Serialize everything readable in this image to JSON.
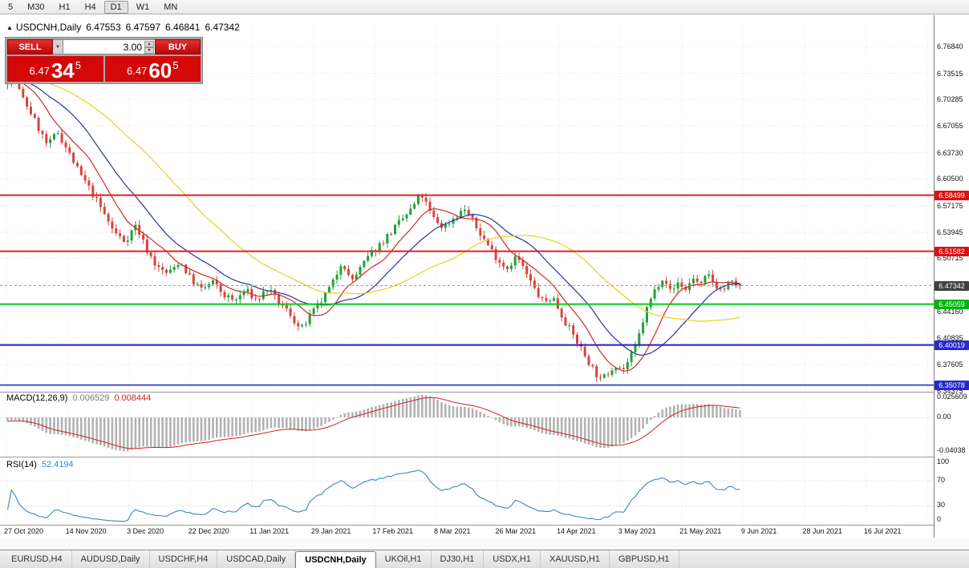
{
  "toolbar": {
    "timeframes": [
      {
        "label": "5",
        "active": false
      },
      {
        "label": "M30",
        "active": false
      },
      {
        "label": "H1",
        "active": false
      },
      {
        "label": "H4",
        "active": false
      },
      {
        "label": "D1",
        "active": true
      },
      {
        "label": "W1",
        "active": false
      },
      {
        "label": "MN",
        "active": false
      }
    ]
  },
  "chart": {
    "title_marker": "▲",
    "symbol_period": "USDCNH,Daily",
    "ohlc": {
      "open": "6.47553",
      "high": "6.47597",
      "low": "6.46841",
      "close": "6.47342"
    }
  },
  "trade_panel": {
    "sell_label": "SELL",
    "buy_label": "BUY",
    "volume": "3.00",
    "sell_quote": {
      "prefix": "6.47",
      "big": "34",
      "sup": "5"
    },
    "buy_quote": {
      "prefix": "6.47",
      "big": "60",
      "sup": "5"
    }
  },
  "indicators": {
    "macd": {
      "label": "MACD(12,26,9)",
      "value_main": "0.006529",
      "value_signal": "0.008444",
      "scale": [
        "0.025609",
        "0.00",
        "-0.04038"
      ]
    },
    "rsi": {
      "label": "RSI(14)",
      "value": "52.4194",
      "scale": [
        "100",
        "70",
        "30",
        "0"
      ]
    }
  },
  "price_scale": {
    "ticks": [
      {
        "label": "6.76840",
        "price": 6.7684
      },
      {
        "label": "6.73515",
        "price": 6.73515
      },
      {
        "label": "6.70285",
        "price": 6.70285
      },
      {
        "label": "6.67055",
        "price": 6.67055
      },
      {
        "label": "6.63730",
        "price": 6.6373
      },
      {
        "label": "6.60500",
        "price": 6.605
      },
      {
        "label": "6.57175",
        "price": 6.57175
      },
      {
        "label": "6.53945",
        "price": 6.53945
      },
      {
        "label": "6.50715",
        "price": 6.50715
      },
      {
        "label": "6.44160",
        "price": 6.4416
      },
      {
        "label": "6.40835",
        "price": 6.40835
      },
      {
        "label": "6.37605",
        "price": 6.37605
      },
      {
        "label": "6.34375",
        "price": 6.34375
      }
    ],
    "tags": [
      {
        "text": "6.58499",
        "price": 6.58499,
        "bg": "#dd1111",
        "fg": "#ffffff"
      },
      {
        "text": "6.51582",
        "price": 6.51582,
        "bg": "#dd1111",
        "fg": "#ffffff"
      },
      {
        "text": "6.47342",
        "price": 6.47342,
        "bg": "#3f3f3f",
        "fg": "#ffffff",
        "role": "current"
      },
      {
        "text": "6.45059",
        "price": 6.45059,
        "bg": "#00b40f",
        "fg": "#ffffff"
      },
      {
        "text": "6.40019",
        "price": 6.40019,
        "bg": "#2828cc",
        "fg": "#ffffff"
      },
      {
        "text": "6.35078",
        "price": 6.35078,
        "bg": "#2828cc",
        "fg": "#ffffff"
      }
    ]
  },
  "tabs": [
    {
      "label": "EURUSD,H4",
      "active": false
    },
    {
      "label": "AUDUSD,Daily",
      "active": false
    },
    {
      "label": "USDCHF,H4",
      "active": false
    },
    {
      "label": "USDCAD,Daily",
      "active": false
    },
    {
      "label": "USDCNH,Daily",
      "active": true
    },
    {
      "label": "UKOil,H1",
      "active": false
    },
    {
      "label": "DJ30,H1",
      "active": false
    },
    {
      "label": "USDX,H1",
      "active": false
    },
    {
      "label": "XAUUSD,H1",
      "active": false
    },
    {
      "label": "GBPUSD,H1",
      "active": false
    }
  ],
  "chart_data": {
    "type": "candlestick",
    "symbol": "USDCNH",
    "timeframe": "Daily",
    "title_quote": {
      "open": 6.47553,
      "high": 6.47597,
      "low": 6.46841,
      "close": 6.47342
    },
    "bid": 6.47345,
    "ask": 6.47605,
    "y_axis": {
      "min": 6.34375,
      "max": 6.7684,
      "grid_prices": [
        6.7684,
        6.73515,
        6.70285,
        6.67055,
        6.6373,
        6.605,
        6.57175,
        6.53945,
        6.50715,
        6.47485,
        6.4416,
        6.40835,
        6.37605,
        6.34375
      ]
    },
    "x_axis_dates": [
      "27 Oct 2020",
      "14 Nov 2020",
      "3 Dec 2020",
      "22 Dec 2020",
      "11 Jan 2021",
      "29 Jan 2021",
      "17 Feb 2021",
      "8 Mar 2021",
      "26 Mar 2021",
      "14 Apr 2021",
      "3 May 2021",
      "21 May 2021",
      "9 Jun 2021",
      "28 Jun 2021",
      "16 Jul 2021"
    ],
    "candle_count": 190,
    "up_color": "#21a038",
    "down_color": "#d1473c",
    "price_path": [
      [
        0.0,
        6.726
      ],
      [
        0.008,
        6.736
      ],
      [
        0.018,
        6.708
      ],
      [
        0.03,
        6.69
      ],
      [
        0.042,
        6.668
      ],
      [
        0.055,
        6.645
      ],
      [
        0.068,
        6.664
      ],
      [
        0.082,
        6.64
      ],
      [
        0.098,
        6.612
      ],
      [
        0.114,
        6.59
      ],
      [
        0.13,
        6.565
      ],
      [
        0.145,
        6.54
      ],
      [
        0.16,
        6.528
      ],
      [
        0.175,
        6.548
      ],
      [
        0.19,
        6.518
      ],
      [
        0.205,
        6.495
      ],
      [
        0.22,
        6.488
      ],
      [
        0.235,
        6.504
      ],
      [
        0.25,
        6.482
      ],
      [
        0.265,
        6.468
      ],
      [
        0.28,
        6.478
      ],
      [
        0.295,
        6.462
      ],
      [
        0.31,
        6.454
      ],
      [
        0.325,
        6.468
      ],
      [
        0.34,
        6.455
      ],
      [
        0.355,
        6.47
      ],
      [
        0.37,
        6.452
      ],
      [
        0.385,
        6.44
      ],
      [
        0.4,
        6.418
      ],
      [
        0.415,
        6.438
      ],
      [
        0.43,
        6.456
      ],
      [
        0.445,
        6.478
      ],
      [
        0.457,
        6.506
      ],
      [
        0.468,
        6.478
      ],
      [
        0.48,
        6.492
      ],
      [
        0.495,
        6.512
      ],
      [
        0.51,
        6.526
      ],
      [
        0.53,
        6.546
      ],
      [
        0.55,
        6.566
      ],
      [
        0.565,
        6.586
      ],
      [
        0.58,
        6.558
      ],
      [
        0.595,
        6.545
      ],
      [
        0.61,
        6.558
      ],
      [
        0.625,
        6.568
      ],
      [
        0.64,
        6.545
      ],
      [
        0.655,
        6.525
      ],
      [
        0.67,
        6.505
      ],
      [
        0.682,
        6.495
      ],
      [
        0.695,
        6.51
      ],
      [
        0.707,
        6.49
      ],
      [
        0.72,
        6.468
      ],
      [
        0.732,
        6.452
      ],
      [
        0.744,
        6.46
      ],
      [
        0.755,
        6.44
      ],
      [
        0.766,
        6.422
      ],
      [
        0.777,
        6.405
      ],
      [
        0.788,
        6.388
      ],
      [
        0.8,
        6.37
      ],
      [
        0.81,
        6.356
      ],
      [
        0.82,
        6.366
      ],
      [
        0.83,
        6.377
      ],
      [
        0.84,
        6.369
      ],
      [
        0.85,
        6.384
      ],
      [
        0.858,
        6.398
      ],
      [
        0.866,
        6.425
      ],
      [
        0.875,
        6.45
      ],
      [
        0.886,
        6.472
      ],
      [
        0.896,
        6.486
      ],
      [
        0.906,
        6.464
      ],
      [
        0.916,
        6.478
      ],
      [
        0.926,
        6.468
      ],
      [
        0.936,
        6.484
      ],
      [
        0.946,
        6.472
      ],
      [
        0.956,
        6.487
      ],
      [
        0.966,
        6.475
      ],
      [
        0.976,
        6.467
      ],
      [
        0.986,
        6.477
      ],
      [
        1.0,
        6.47342
      ]
    ],
    "horizontal_lines": [
      {
        "price": 6.58499,
        "color": "#e02020",
        "width": 2
      },
      {
        "price": 6.51582,
        "color": "#e02020",
        "width": 2
      },
      {
        "price": 6.45059,
        "color": "#00cc14",
        "width": 2
      },
      {
        "price": 6.40019,
        "color": "#2020c8",
        "width": 2
      },
      {
        "price": 6.35078,
        "color": "#2020c8",
        "width": 1.5
      }
    ],
    "moving_averages": [
      {
        "type": "sma",
        "period": 10,
        "color": "#d02828"
      },
      {
        "type": "sma",
        "period": 21,
        "color": "#2a329e"
      },
      {
        "type": "sma",
        "period": 45,
        "color": "#e8d01f"
      }
    ],
    "macd": {
      "fast": 12,
      "slow": 26,
      "signal_period": 9,
      "current": 0.006529,
      "current_signal": 0.008444,
      "scale_top": 0.025609,
      "scale_mid": 0.0,
      "scale_bottom": -0.04038,
      "histogram_color": "#b2b2b2",
      "signal_color": "#cc2222"
    },
    "rsi": {
      "period": 14,
      "current": 52.4194,
      "levels": [
        70,
        30
      ],
      "line_color": "#3c84c6"
    }
  }
}
